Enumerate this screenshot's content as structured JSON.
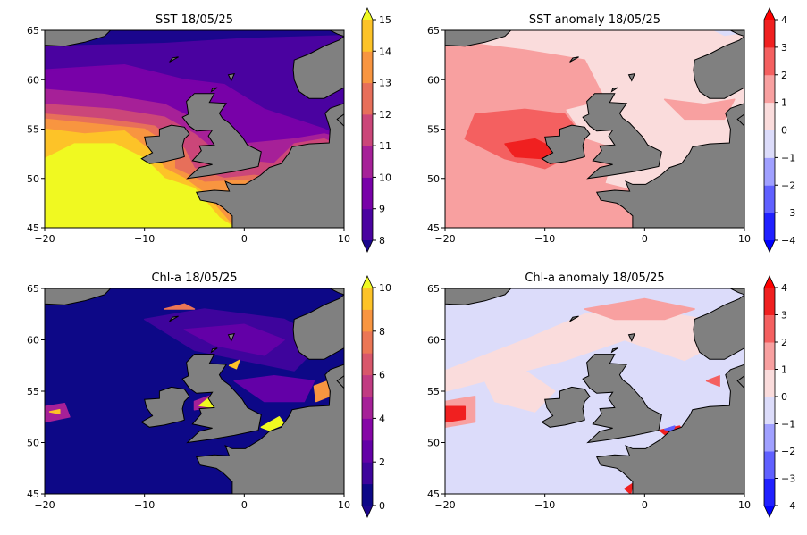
{
  "chart_data": [
    {
      "type": "heatmap",
      "title": "SST 18/05/25",
      "xlim": [
        -20,
        10
      ],
      "ylim": [
        45,
        65
      ],
      "xticks": [
        "−20",
        "−10",
        "0",
        "10"
      ],
      "yticks": [
        "45",
        "50",
        "55",
        "60",
        "65"
      ],
      "colorbar": {
        "ticks": [
          "8",
          "9",
          "10",
          "11",
          "12",
          "13",
          "14",
          "15"
        ],
        "levels": [
          8,
          9,
          10,
          11,
          12,
          13,
          14,
          15
        ],
        "extend": "both",
        "colormap": "plasma",
        "colors": [
          "#1b068d",
          "#4a02a0",
          "#7801a8",
          "#a62098",
          "#cb4679",
          "#e76f5a",
          "#f89540",
          "#fdc328",
          "#f0f921"
        ]
      },
      "land_color": "#808080"
    },
    {
      "type": "heatmap",
      "title": "SST anomaly 18/05/25",
      "xlim": [
        -20,
        10
      ],
      "ylim": [
        45,
        65
      ],
      "xticks": [
        "−20",
        "−10",
        "0",
        "10"
      ],
      "yticks": [
        "45",
        "50",
        "55",
        "60",
        "65"
      ],
      "colorbar": {
        "ticks": [
          "−4",
          "−3",
          "−2",
          "−1",
          "0",
          "1",
          "2",
          "3",
          "4"
        ],
        "levels": [
          -4,
          -3,
          -2,
          -1,
          0,
          1,
          2,
          3,
          4
        ],
        "extend": "both",
        "colormap": "bwr",
        "colors": [
          "#0000ff",
          "#2020ff",
          "#6060ff",
          "#a0a0ff",
          "#dcdcfa",
          "#fadcdc",
          "#f8a0a0",
          "#f46060",
          "#f02020",
          "#ff0000"
        ]
      },
      "land_color": "#808080"
    },
    {
      "type": "heatmap",
      "title": "Chl-a 18/05/25",
      "xlim": [
        -20,
        10
      ],
      "ylim": [
        45,
        65
      ],
      "xticks": [
        "−20",
        "−10",
        "0",
        "10"
      ],
      "yticks": [
        "45",
        "50",
        "55",
        "60",
        "65"
      ],
      "colorbar": {
        "ticks": [
          "0",
          "2",
          "4",
          "6",
          "8",
          "10"
        ],
        "levels": [
          0,
          1,
          2,
          3,
          4,
          5,
          6,
          7,
          8,
          9,
          10
        ],
        "extend": "both",
        "colormap": "plasma",
        "colors": [
          "#1b068d",
          "#0d0887",
          "#3e049c",
          "#6300a7",
          "#8606a6",
          "#a62098",
          "#c13b82",
          "#d8576b",
          "#eb7655",
          "#f89540",
          "#fdc328",
          "#f0f921"
        ]
      },
      "land_color": "#808080"
    },
    {
      "type": "heatmap",
      "title": "Chl-a anomaly 18/05/25",
      "xlim": [
        -20,
        10
      ],
      "ylim": [
        45,
        65
      ],
      "xticks": [
        "−20",
        "−10",
        "0",
        "10"
      ],
      "yticks": [
        "45",
        "50",
        "55",
        "60",
        "65"
      ],
      "colorbar": {
        "ticks": [
          "−4",
          "−3",
          "−2",
          "−1",
          "0",
          "1",
          "2",
          "3",
          "4"
        ],
        "levels": [
          -4,
          -3,
          -2,
          -1,
          0,
          1,
          2,
          3,
          4
        ],
        "extend": "both",
        "colormap": "bwr",
        "colors": [
          "#0000ff",
          "#2020ff",
          "#6060ff",
          "#a0a0ff",
          "#dcdcfa",
          "#fadcdc",
          "#f8a0a0",
          "#f46060",
          "#f02020",
          "#ff0000"
        ]
      },
      "land_color": "#808080"
    }
  ]
}
